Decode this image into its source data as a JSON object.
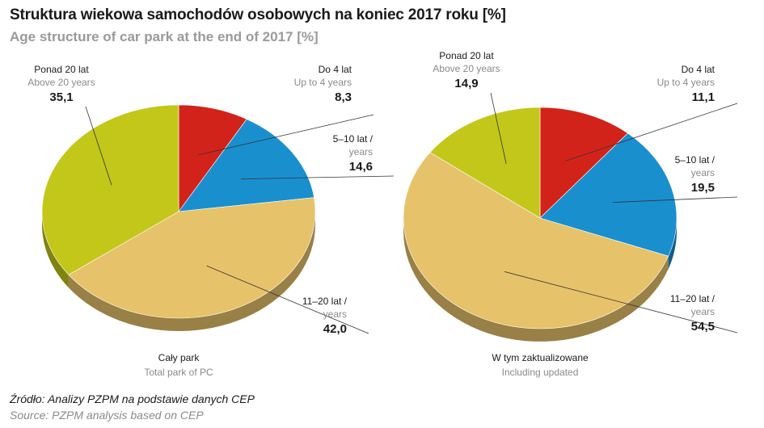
{
  "header": {
    "title": "Struktura wiekowa samochodów osobowych na koniec 2017 roku [%]",
    "subtitle": "Age structure of car park at the end of 2017 [%]"
  },
  "source": {
    "pl": "Źródło: Analizy PZPM na podstawie danych CEP",
    "en": "Source: PZPM analysis based on CEP"
  },
  "colors": {
    "red": "#d2231b",
    "blue": "#1a8fce",
    "sand": "#e6c26a",
    "olive": "#c2c71a"
  },
  "chart_data": [
    {
      "type": "pie",
      "title_pl": "Cały park",
      "title_en": "Total park of PC",
      "slices": [
        {
          "label_pl": "Do 4 lat",
          "label_en": "Up to 4 years",
          "value": 8.3,
          "value_label": "8,3",
          "color": "#d2231b"
        },
        {
          "label_pl": "5–10 lat /",
          "label_en": "years",
          "value": 14.6,
          "value_label": "14,6",
          "color": "#1a8fce"
        },
        {
          "label_pl": "11–20 lat /",
          "label_en": "years",
          "value": 42.0,
          "value_label": "42,0",
          "color": "#e6c26a"
        },
        {
          "label_pl": "Ponad 20 lat",
          "label_en": "Above 20 years",
          "value": 35.1,
          "value_label": "35,1",
          "color": "#c2c71a"
        }
      ]
    },
    {
      "type": "pie",
      "title_pl": "W tym zaktualizowane",
      "title_en": "Including updated",
      "slices": [
        {
          "label_pl": "Do 4 lat",
          "label_en": "Up to 4 years",
          "value": 11.1,
          "value_label": "11,1",
          "color": "#d2231b"
        },
        {
          "label_pl": "5–10 lat /",
          "label_en": "years",
          "value": 19.5,
          "value_label": "19,5",
          "color": "#1a8fce"
        },
        {
          "label_pl": "11–20 lat /",
          "label_en": "years",
          "value": 54.5,
          "value_label": "54,5",
          "color": "#e6c26a"
        },
        {
          "label_pl": "Ponad 20 lat",
          "label_en": "Above 20 years",
          "value": 14.9,
          "value_label": "14,9",
          "color": "#c2c71a"
        }
      ]
    }
  ]
}
